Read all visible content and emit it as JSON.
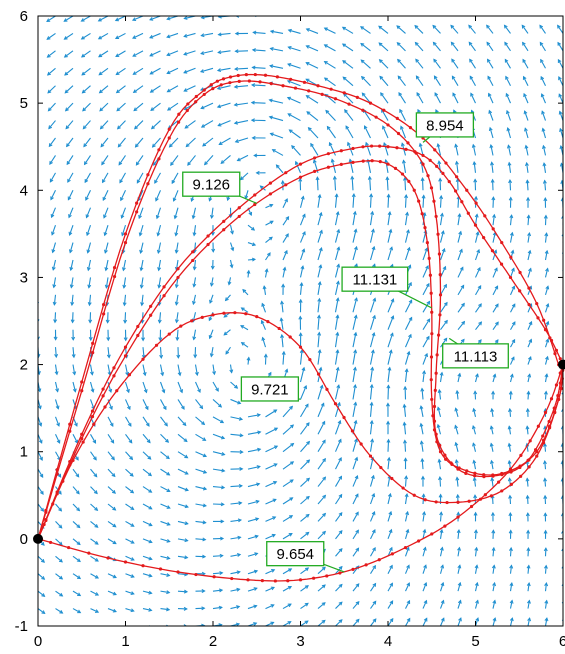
{
  "chart_data": {
    "type": "line",
    "title": "",
    "xlabel": "",
    "ylabel": "",
    "xlim": [
      0,
      6
    ],
    "ylim": [
      -1,
      6
    ],
    "x_ticks": [
      "0",
      "1",
      "2",
      "3",
      "4",
      "5",
      "6"
    ],
    "y_ticks": [
      "-1",
      "0",
      "1",
      "2",
      "3",
      "4",
      "5",
      "6"
    ],
    "grid": false,
    "legend": "none",
    "colors": {
      "paths": "#e41a1c",
      "vector_field": "#1f8fd0",
      "endpoints": "#000000",
      "label_border": "#22aa22"
    },
    "vector_field": {
      "description_free": true,
      "grid_x": [
        0,
        6
      ],
      "grid_y": [
        -1,
        6
      ],
      "spacing": 0.2
    },
    "endpoints": [
      {
        "x": 0,
        "y": 0
      },
      {
        "x": 6,
        "y": 2
      }
    ],
    "series": [
      {
        "label": "8.954",
        "points": [
          [
            0,
            0
          ],
          [
            0.5,
            1.8
          ],
          [
            1.0,
            3.5
          ],
          [
            1.5,
            4.7
          ],
          [
            1.9,
            5.15
          ],
          [
            2.2,
            5.3
          ],
          [
            2.6,
            5.32
          ],
          [
            3.2,
            5.2
          ],
          [
            3.8,
            5.0
          ],
          [
            4.4,
            4.6
          ],
          [
            4.9,
            4.0
          ],
          [
            5.3,
            3.4
          ],
          [
            5.7,
            2.7
          ],
          [
            5.95,
            2.0
          ]
        ]
      },
      {
        "label": "11.113",
        "points": [
          [
            0,
            0
          ],
          [
            0.5,
            1.7
          ],
          [
            1.0,
            3.4
          ],
          [
            1.5,
            4.6
          ],
          [
            1.9,
            5.1
          ],
          [
            2.3,
            5.25
          ],
          [
            2.8,
            5.2
          ],
          [
            3.4,
            5.05
          ],
          [
            4.0,
            4.75
          ],
          [
            4.4,
            4.3
          ],
          [
            4.55,
            3.7
          ],
          [
            4.6,
            2.8
          ],
          [
            4.55,
            1.9
          ],
          [
            4.55,
            1.2
          ],
          [
            4.8,
            0.8
          ],
          [
            5.2,
            0.72
          ],
          [
            5.6,
            0.9
          ],
          [
            5.9,
            1.5
          ],
          [
            6,
            2
          ]
        ]
      },
      {
        "label": "9.126",
        "points": [
          [
            0,
            0
          ],
          [
            0.5,
            1.2
          ],
          [
            1.0,
            2.2
          ],
          [
            1.6,
            3.1
          ],
          [
            2.3,
            3.8
          ],
          [
            3.0,
            4.3
          ],
          [
            3.6,
            4.48
          ],
          [
            4.0,
            4.5
          ],
          [
            4.4,
            4.4
          ],
          [
            4.7,
            4.1
          ],
          [
            5.0,
            3.6
          ],
          [
            5.4,
            3.0
          ],
          [
            5.8,
            2.4
          ],
          [
            6,
            2
          ]
        ]
      },
      {
        "label": "11.131",
        "points": [
          [
            0,
            0
          ],
          [
            0.5,
            1.15
          ],
          [
            1.0,
            2.1
          ],
          [
            1.6,
            3.0
          ],
          [
            2.3,
            3.7
          ],
          [
            3.0,
            4.15
          ],
          [
            3.6,
            4.32
          ],
          [
            4.0,
            4.3
          ],
          [
            4.3,
            4.0
          ],
          [
            4.45,
            3.4
          ],
          [
            4.5,
            2.6
          ],
          [
            4.5,
            1.6
          ],
          [
            4.6,
            1.0
          ],
          [
            4.9,
            0.78
          ],
          [
            5.3,
            0.75
          ],
          [
            5.7,
            1.0
          ],
          [
            5.95,
            1.6
          ],
          [
            6,
            2
          ]
        ]
      },
      {
        "label": "9.721",
        "points": [
          [
            0,
            0
          ],
          [
            0.4,
            0.9
          ],
          [
            0.9,
            1.7
          ],
          [
            1.5,
            2.35
          ],
          [
            2.0,
            2.57
          ],
          [
            2.5,
            2.55
          ],
          [
            3.0,
            2.2
          ],
          [
            3.4,
            1.55
          ],
          [
            3.8,
            0.95
          ],
          [
            4.3,
            0.5
          ],
          [
            4.8,
            0.42
          ],
          [
            5.3,
            0.55
          ],
          [
            5.7,
            0.95
          ],
          [
            5.95,
            1.6
          ],
          [
            6,
            2
          ]
        ]
      },
      {
        "label": "9.654",
        "points": [
          [
            0,
            0
          ],
          [
            0.8,
            -0.22
          ],
          [
            1.6,
            -0.38
          ],
          [
            2.4,
            -0.47
          ],
          [
            3.0,
            -0.47
          ],
          [
            3.6,
            -0.35
          ],
          [
            4.2,
            -0.1
          ],
          [
            4.8,
            0.25
          ],
          [
            5.4,
            0.8
          ],
          [
            5.8,
            1.45
          ],
          [
            6,
            2
          ]
        ]
      }
    ],
    "annotations": [
      {
        "text": "8.954",
        "x": 4.65,
        "y": 4.75,
        "ax": 4.4,
        "ay": 4.55
      },
      {
        "text": "9.126",
        "x": 1.98,
        "y": 4.07,
        "ax": 2.5,
        "ay": 3.85
      },
      {
        "text": "11.131",
        "x": 3.85,
        "y": 2.98,
        "ax": 4.5,
        "ay": 2.65
      },
      {
        "text": "11.113",
        "x": 5.0,
        "y": 2.1,
        "ax": 4.7,
        "ay": 2.3
      },
      {
        "text": "9.721",
        "x": 2.65,
        "y": 1.72,
        "ax": 3.0,
        "ay": 1.6
      },
      {
        "text": "9.654",
        "x": 2.94,
        "y": -0.17,
        "ax": 3.5,
        "ay": -0.38
      }
    ]
  }
}
